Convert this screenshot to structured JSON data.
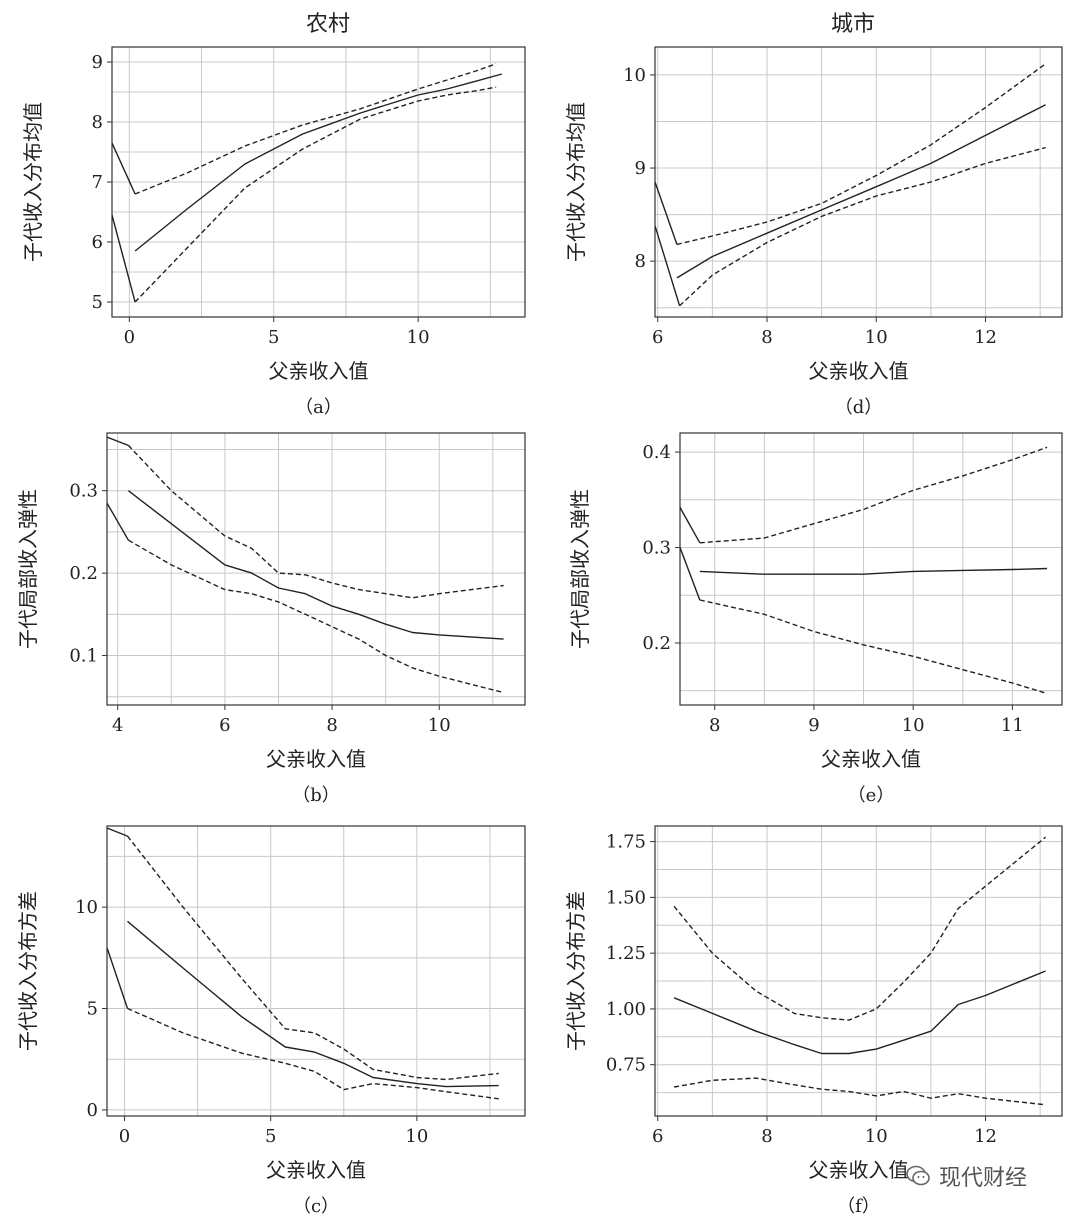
{
  "column_titles": [
    "农村",
    "城市"
  ],
  "watermark": {
    "text": "现代财经"
  },
  "colors": {
    "line": "#222222",
    "grid": "#c8c8c8",
    "frame": "#333333"
  },
  "chart_data": [
    {
      "id": "a",
      "type": "line",
      "caption": "（a）",
      "xlabel": "父亲收入值",
      "ylabel": "子代收入分布均值",
      "xlim": [
        -0.6,
        13.7
      ],
      "ylim": [
        4.75,
        9.25
      ],
      "xticks": [
        0,
        5,
        10
      ],
      "yticks": [
        5,
        6,
        7,
        8,
        9
      ],
      "series": [
        {
          "style": "solid",
          "x": [
            0.2,
            2,
            4,
            6,
            8,
            10,
            11,
            12,
            12.9
          ],
          "y": [
            5.85,
            6.55,
            7.3,
            7.8,
            8.15,
            8.45,
            8.55,
            8.68,
            8.8
          ]
        },
        {
          "style": "dashed",
          "x": [
            0.2,
            2,
            4,
            6,
            8,
            10,
            11,
            12,
            12.7
          ],
          "y": [
            6.8,
            7.15,
            7.6,
            7.95,
            8.22,
            8.55,
            8.7,
            8.85,
            8.97
          ]
        },
        {
          "style": "dashed",
          "x": [
            0.2,
            2,
            4,
            6,
            8,
            10,
            11,
            12,
            12.7
          ],
          "y": [
            5.0,
            5.9,
            6.9,
            7.55,
            8.05,
            8.35,
            8.45,
            8.52,
            8.58
          ]
        },
        {
          "style": "solid",
          "x": [
            -0.6,
            0.2
          ],
          "y": [
            7.65,
            6.8
          ]
        },
        {
          "style": "solid",
          "x": [
            -0.6,
            0.2
          ],
          "y": [
            6.45,
            5.0
          ]
        }
      ]
    },
    {
      "id": "d",
      "type": "line",
      "caption": "（d）",
      "title": "城市",
      "xlabel": "父亲收入值",
      "ylabel": "子代收入分布均值",
      "xlim": [
        5.95,
        13.4
      ],
      "ylim": [
        7.4,
        10.3
      ],
      "xticks": [
        6,
        8,
        10,
        12
      ],
      "yticks": [
        8,
        9,
        10
      ],
      "series": [
        {
          "style": "solid",
          "x": [
            6.35,
            7,
            8,
            9,
            10,
            11,
            12,
            13.1
          ],
          "y": [
            7.82,
            8.05,
            8.3,
            8.55,
            8.8,
            9.05,
            9.35,
            9.68
          ]
        },
        {
          "style": "dashed",
          "x": [
            6.35,
            7,
            8,
            9,
            10,
            11,
            12,
            13.1
          ],
          "y": [
            8.18,
            8.27,
            8.42,
            8.62,
            8.92,
            9.25,
            9.65,
            10.12
          ]
        },
        {
          "style": "dashed",
          "x": [
            6.4,
            7,
            8,
            9,
            10,
            11,
            12,
            13.1
          ],
          "y": [
            7.52,
            7.85,
            8.2,
            8.48,
            8.7,
            8.85,
            9.05,
            9.22
          ]
        },
        {
          "style": "solid",
          "x": [
            5.95,
            6.35
          ],
          "y": [
            8.85,
            8.18
          ]
        },
        {
          "style": "solid",
          "x": [
            5.95,
            6.4
          ],
          "y": [
            8.38,
            7.52
          ]
        }
      ]
    },
    {
      "id": "b",
      "type": "line",
      "caption": "（b）",
      "xlabel": "父亲收入值",
      "ylabel": "子代局部收入弹性",
      "xlim": [
        3.8,
        11.6
      ],
      "ylim": [
        0.04,
        0.37
      ],
      "xticks": [
        4,
        6,
        8,
        10
      ],
      "yticks": [
        0.1,
        0.2,
        0.3
      ],
      "ytick_labels": [
        "0.1",
        "0.2",
        "0.3"
      ],
      "series": [
        {
          "style": "solid",
          "x": [
            4.2,
            5,
            6,
            6.5,
            7,
            7.5,
            8,
            8.5,
            9,
            9.5,
            10,
            11.2
          ],
          "y": [
            0.3,
            0.26,
            0.21,
            0.2,
            0.182,
            0.175,
            0.16,
            0.15,
            0.138,
            0.128,
            0.125,
            0.12
          ]
        },
        {
          "style": "dashed",
          "x": [
            4.2,
            5,
            6,
            6.5,
            7,
            7.5,
            8,
            8.5,
            9,
            9.5,
            10,
            11.2
          ],
          "y": [
            0.355,
            0.3,
            0.245,
            0.23,
            0.2,
            0.198,
            0.188,
            0.18,
            0.175,
            0.17,
            0.175,
            0.185
          ]
        },
        {
          "style": "dashed",
          "x": [
            4.2,
            5,
            6,
            6.5,
            7,
            7.5,
            8,
            8.5,
            9,
            9.5,
            10,
            11.2
          ],
          "y": [
            0.24,
            0.21,
            0.18,
            0.175,
            0.165,
            0.15,
            0.135,
            0.12,
            0.1,
            0.085,
            0.075,
            0.055
          ]
        },
        {
          "style": "solid",
          "x": [
            3.8,
            4.2
          ],
          "y": [
            0.365,
            0.355
          ]
        },
        {
          "style": "solid",
          "x": [
            3.8,
            4.2
          ],
          "y": [
            0.285,
            0.24
          ]
        }
      ]
    },
    {
      "id": "e",
      "type": "line",
      "caption": "（e）",
      "xlabel": "父亲收入值",
      "ylabel": "子代局部收入弹性",
      "xlim": [
        7.65,
        11.5
      ],
      "ylim": [
        0.135,
        0.42
      ],
      "xticks": [
        8,
        9,
        10,
        11
      ],
      "yticks": [
        0.2,
        0.3,
        0.4
      ],
      "ytick_labels": [
        "0.2",
        "0.3",
        "0.4"
      ],
      "series": [
        {
          "style": "solid",
          "x": [
            7.85,
            8.5,
            9,
            9.5,
            10,
            10.5,
            11,
            11.35
          ],
          "y": [
            0.275,
            0.272,
            0.272,
            0.272,
            0.275,
            0.276,
            0.277,
            0.278
          ]
        },
        {
          "style": "dashed",
          "x": [
            7.85,
            8.5,
            9,
            9.5,
            10,
            10.5,
            11,
            11.35
          ],
          "y": [
            0.305,
            0.31,
            0.325,
            0.34,
            0.36,
            0.375,
            0.392,
            0.405
          ]
        },
        {
          "style": "dashed",
          "x": [
            7.85,
            8.5,
            9,
            9.5,
            10,
            10.5,
            11,
            11.35
          ],
          "y": [
            0.245,
            0.23,
            0.212,
            0.198,
            0.186,
            0.172,
            0.158,
            0.147
          ]
        },
        {
          "style": "solid",
          "x": [
            7.65,
            7.85
          ],
          "y": [
            0.342,
            0.305
          ]
        },
        {
          "style": "solid",
          "x": [
            7.65,
            7.85
          ],
          "y": [
            0.3,
            0.245
          ]
        }
      ]
    },
    {
      "id": "c",
      "type": "line",
      "caption": "（c）",
      "xlabel": "父亲收入值",
      "ylabel": "子代收入分布方差",
      "xlim": [
        -0.6,
        13.7
      ],
      "ylim": [
        -0.3,
        14
      ],
      "xticks": [
        0,
        5,
        10
      ],
      "yticks": [
        0,
        5,
        10
      ],
      "series": [
        {
          "style": "solid",
          "x": [
            0.1,
            2,
            4,
            5.5,
            6.5,
            7.5,
            8.5,
            10,
            11,
            12.8
          ],
          "y": [
            9.3,
            7.0,
            4.6,
            3.1,
            2.85,
            2.3,
            1.6,
            1.3,
            1.15,
            1.2
          ]
        },
        {
          "style": "dashed",
          "x": [
            0.1,
            2,
            4,
            5.5,
            6.5,
            7.5,
            8.5,
            10,
            11,
            12.8
          ],
          "y": [
            13.5,
            10.0,
            6.5,
            4.0,
            3.8,
            3.0,
            2.0,
            1.6,
            1.5,
            1.8
          ]
        },
        {
          "style": "dashed",
          "x": [
            0.1,
            2,
            4,
            5.5,
            6.5,
            7.5,
            8.5,
            10,
            11,
            12.8
          ],
          "y": [
            5.0,
            3.8,
            2.8,
            2.3,
            1.9,
            1.0,
            1.3,
            1.1,
            0.9,
            0.55
          ]
        },
        {
          "style": "solid",
          "x": [
            -0.6,
            0.1
          ],
          "y": [
            13.9,
            13.5
          ]
        },
        {
          "style": "solid",
          "x": [
            -0.6,
            0.1
          ],
          "y": [
            8.0,
            5.0
          ]
        }
      ]
    },
    {
      "id": "f",
      "type": "line",
      "caption": "（f）",
      "xlabel": "父亲收入值",
      "ylabel": "子代收入分布方差",
      "xlim": [
        5.95,
        13.4
      ],
      "ylim": [
        0.52,
        1.82
      ],
      "xticks": [
        6,
        8,
        10,
        12
      ],
      "yticks": [
        0.75,
        1.0,
        1.25,
        1.5,
        1.75
      ],
      "ytick_labels": [
        "0.75",
        "1.00",
        "1.25",
        "1.50",
        "1.75"
      ],
      "series": [
        {
          "style": "solid",
          "x": [
            6.3,
            7,
            7.8,
            8.5,
            9,
            9.5,
            10,
            10.5,
            11,
            11.5,
            12,
            13.1
          ],
          "y": [
            1.05,
            0.98,
            0.9,
            0.84,
            0.8,
            0.8,
            0.82,
            0.86,
            0.9,
            1.02,
            1.06,
            1.17
          ]
        },
        {
          "style": "dashed",
          "x": [
            6.3,
            7,
            7.8,
            8.5,
            9,
            9.5,
            10,
            10.5,
            11,
            11.5,
            12,
            13.1
          ],
          "y": [
            1.46,
            1.25,
            1.08,
            0.98,
            0.96,
            0.95,
            1.0,
            1.12,
            1.25,
            1.45,
            1.55,
            1.77
          ]
        },
        {
          "style": "dashed",
          "x": [
            6.3,
            7,
            7.8,
            8.5,
            9,
            9.5,
            10,
            10.5,
            11,
            11.5,
            12,
            13.1
          ],
          "y": [
            0.65,
            0.68,
            0.69,
            0.66,
            0.64,
            0.63,
            0.61,
            0.63,
            0.6,
            0.62,
            0.6,
            0.57
          ]
        }
      ]
    }
  ]
}
